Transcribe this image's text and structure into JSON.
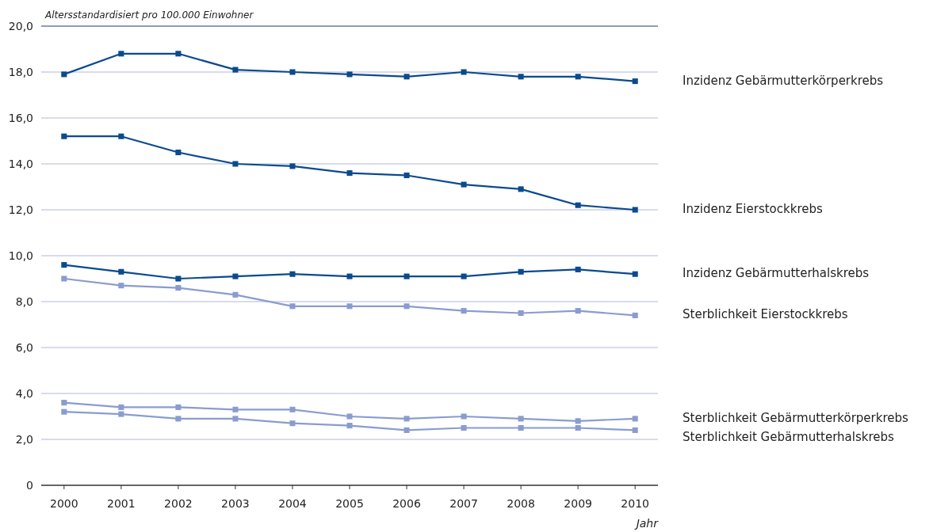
{
  "chart_data": {
    "type": "line",
    "ylabel": "Altersstandardisiert pro 100.000 Einwohner",
    "xlabel": "Jahr",
    "categories": [
      "2000",
      "2001",
      "2002",
      "2003",
      "2004",
      "2005",
      "2006",
      "2007",
      "2008",
      "2009",
      "2010"
    ],
    "ylim": [
      0,
      20
    ],
    "yticks": [
      {
        "value": 0,
        "label": "0"
      },
      {
        "value": 2,
        "label": "2,0"
      },
      {
        "value": 4,
        "label": "4,0"
      },
      {
        "value": 6,
        "label": "6,0"
      },
      {
        "value": 8,
        "label": "8,0"
      },
      {
        "value": 10,
        "label": "10,0"
      },
      {
        "value": 12,
        "label": "12,0"
      },
      {
        "value": 14,
        "label": "14,0"
      },
      {
        "value": 16,
        "label": "16,0"
      },
      {
        "value": 18,
        "label": "18,0"
      },
      {
        "value": 20,
        "label": "20,0"
      }
    ],
    "grid": "y",
    "marker": "square",
    "line_style": "solid",
    "series": [
      {
        "name": "Inzidenz Gebärmutterkörperkrebs",
        "color": "#0b4a8e",
        "values": [
          17.9,
          18.8,
          18.8,
          18.1,
          18.0,
          17.9,
          17.8,
          18.0,
          17.8,
          17.8,
          17.6
        ]
      },
      {
        "name": "Inzidenz Eierstockkrebs",
        "color": "#0b4a8e",
        "values": [
          15.2,
          15.2,
          14.5,
          14.0,
          13.9,
          13.6,
          13.5,
          13.1,
          12.9,
          12.2,
          12.0
        ]
      },
      {
        "name": "Inzidenz Gebärmutterhalskrebs",
        "color": "#0b4a8e",
        "values": [
          9.6,
          9.3,
          9.0,
          9.1,
          9.2,
          9.1,
          9.1,
          9.1,
          9.3,
          9.4,
          9.2
        ]
      },
      {
        "name": "Sterblichkeit Eierstockkrebs",
        "color": "#8a9ccf",
        "values": [
          9.0,
          8.7,
          8.6,
          8.3,
          7.8,
          7.8,
          7.8,
          7.6,
          7.5,
          7.6,
          7.4
        ]
      },
      {
        "name": "Sterblichkeit Gebärmutterkörperkrebs",
        "color": "#8a9ccf",
        "values": [
          3.6,
          3.4,
          3.4,
          3.3,
          3.3,
          3.0,
          2.9,
          3.0,
          2.9,
          2.8,
          2.9
        ]
      },
      {
        "name": "Sterblichkeit Gebärmutterhalskrebs",
        "color": "#8a9ccf",
        "values": [
          3.2,
          3.1,
          2.9,
          2.9,
          2.7,
          2.6,
          2.4,
          2.5,
          2.5,
          2.5,
          2.4
        ]
      }
    ]
  }
}
